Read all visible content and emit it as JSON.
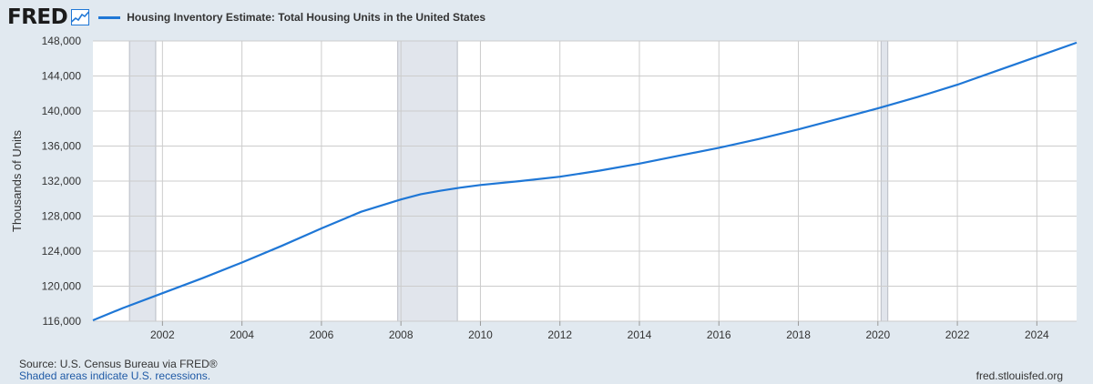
{
  "header": {
    "logo": "FRED",
    "legend_label": "Housing Inventory Estimate: Total Housing Units in the United States"
  },
  "footer": {
    "source": "Source: U.S. Census Bureau via FRED®",
    "note": "Shaded areas indicate U.S. recessions.",
    "site": "fred.stlouisfed.org"
  },
  "colors": {
    "line": "#1f77d6",
    "background": "#e1e9f0",
    "plot": "#ffffff",
    "recession": "#e1e5ec",
    "grid": "#cccccc"
  },
  "chart_data": {
    "type": "line",
    "title": "Housing Inventory Estimate: Total Housing Units in the United States",
    "ylabel": "Thousands of Units",
    "xlabel": "",
    "ylim": [
      116000,
      148000
    ],
    "xlim": [
      2000.25,
      2025.0
    ],
    "yticks": [
      116000,
      120000,
      124000,
      128000,
      132000,
      136000,
      140000,
      144000,
      148000
    ],
    "ytick_labels": [
      "116,000",
      "120,000",
      "124,000",
      "128,000",
      "132,000",
      "136,000",
      "140,000",
      "144,000",
      "148,000"
    ],
    "xticks": [
      2002,
      2004,
      2006,
      2008,
      2010,
      2012,
      2014,
      2016,
      2018,
      2020,
      2022,
      2024
    ],
    "xtick_labels": [
      "2002",
      "2004",
      "2006",
      "2008",
      "2010",
      "2012",
      "2014",
      "2016",
      "2018",
      "2020",
      "2022",
      "2024"
    ],
    "grid": true,
    "legend_placement": "top-left",
    "recessions": [
      [
        2001.17,
        2001.83
      ],
      [
        2007.92,
        2009.42
      ],
      [
        2020.08,
        2020.25
      ]
    ],
    "series": [
      {
        "name": "Housing Inventory Estimate: Total Housing Units in the United States",
        "x": [
          2000.25,
          2001,
          2002,
          2003,
          2004,
          2005,
          2006,
          2007,
          2008,
          2008.5,
          2009,
          2009.5,
          2010,
          2011,
          2012,
          2013,
          2014,
          2015,
          2016,
          2017,
          2018,
          2019,
          2020,
          2021,
          2022,
          2023,
          2024,
          2025
        ],
        "y": [
          116100,
          117500,
          119200,
          120900,
          122700,
          124600,
          126600,
          128500,
          129900,
          130500,
          130900,
          131250,
          131550,
          132000,
          132500,
          133200,
          134000,
          134900,
          135800,
          136800,
          137900,
          139100,
          140300,
          141600,
          143000,
          144600,
          146200,
          147800
        ]
      }
    ]
  }
}
